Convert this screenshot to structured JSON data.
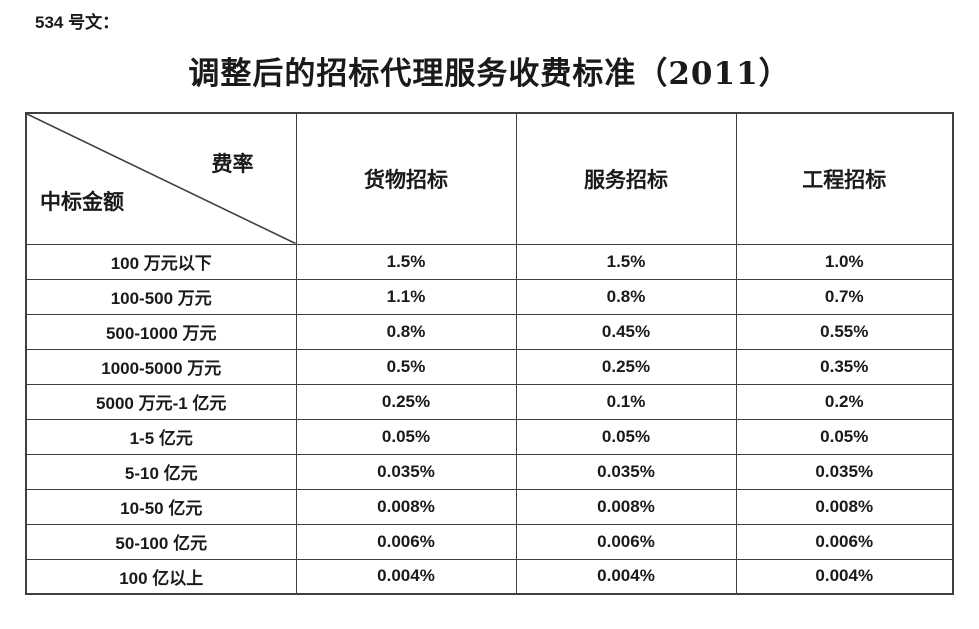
{
  "page": {
    "doc_label": "534 号文：",
    "title": "调整后的招标代理服务收费标准（2011）"
  },
  "colors": {
    "border": "#3f3f3f",
    "text": "#1a1a1a",
    "background": "#ffffff"
  },
  "table": {
    "corner": {
      "top_right": "费率",
      "bottom_left": "中标金额"
    },
    "columns": [
      "货物招标",
      "服务招标",
      "工程招标"
    ],
    "rows": [
      {
        "label": "100 万元以下",
        "values": [
          "1.5%",
          "1.5%",
          "1.0%"
        ]
      },
      {
        "label": "100-500 万元",
        "values": [
          "1.1%",
          "0.8%",
          "0.7%"
        ]
      },
      {
        "label": "500-1000 万元",
        "values": [
          "0.8%",
          "0.45%",
          "0.55%"
        ]
      },
      {
        "label": "1000-5000 万元",
        "values": [
          "0.5%",
          "0.25%",
          "0.35%"
        ]
      },
      {
        "label": "5000 万元-1 亿元",
        "values": [
          "0.25%",
          "0.1%",
          "0.2%"
        ]
      },
      {
        "label": "1-5 亿元",
        "values": [
          "0.05%",
          "0.05%",
          "0.05%"
        ]
      },
      {
        "label": "5-10 亿元",
        "values": [
          "0.035%",
          "0.035%",
          "0.035%"
        ]
      },
      {
        "label": "10-50 亿元",
        "values": [
          "0.008%",
          "0.008%",
          "0.008%"
        ]
      },
      {
        "label": "50-100 亿元",
        "values": [
          "0.006%",
          "0.006%",
          "0.006%"
        ]
      },
      {
        "label": "100 亿以上",
        "values": [
          "0.004%",
          "0.004%",
          "0.004%"
        ]
      }
    ]
  }
}
